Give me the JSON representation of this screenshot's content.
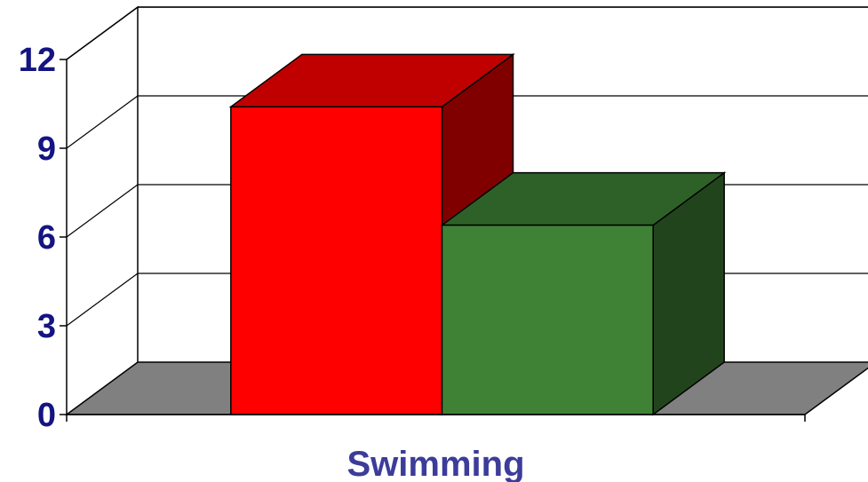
{
  "chart_data": {
    "type": "bar",
    "subtype": "3d-clustered-column",
    "categories": [
      "Swimming"
    ],
    "series": [
      {
        "values": [
          10.4
        ],
        "color": "#ff0000",
        "top_color": "#c00000",
        "side_color": "#800000"
      },
      {
        "values": [
          6.4
        ],
        "color": "#3f8236",
        "top_color": "#2e6127",
        "side_color": "#22441c"
      }
    ],
    "y_ticks": [
      "0",
      "3",
      "6",
      "9",
      "12"
    ],
    "ylim": [
      0,
      12
    ],
    "grid": true,
    "legend": "none",
    "floor_color": "#808080",
    "label_color": "#141482",
    "category_label_color": "#3c3c9a"
  }
}
